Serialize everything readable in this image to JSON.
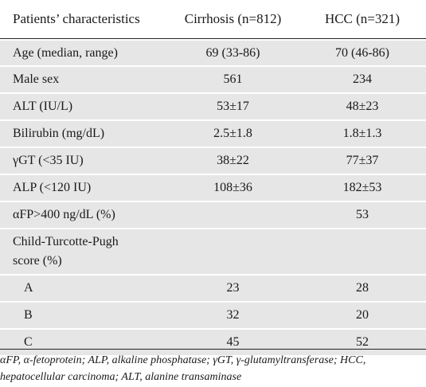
{
  "table": {
    "headers": [
      "Patients’ characteristics",
      "Cirrhosis (n=812)",
      "HCC (n=321)"
    ],
    "rows": [
      {
        "label": "Age (median, range)",
        "cirrhosis": "69 (33-86)",
        "hcc": "70 (46-86)"
      },
      {
        "label": "Male sex",
        "cirrhosis": "561",
        "hcc": "234"
      },
      {
        "label": "ALT (IU/L)",
        "cirrhosis": "53±17",
        "hcc": "48±23"
      },
      {
        "label": "Bilirubin (mg/dL)",
        "cirrhosis": "2.5±1.8",
        "hcc": "1.8±1.3"
      },
      {
        "label": "γGT (<35 IU)",
        "cirrhosis": "38±22",
        "hcc": "77±37"
      },
      {
        "label": "ALP (<120 IU)",
        "cirrhosis": "108±36",
        "hcc": "182±53"
      },
      {
        "label": "αFP>400 ng/dL (%)",
        "cirrhosis": "",
        "hcc": "53"
      },
      {
        "label": "Child-Turcotte-Pugh score (%)",
        "cirrhosis": "",
        "hcc": ""
      },
      {
        "label": "A",
        "cirrhosis": "23",
        "hcc": "28"
      },
      {
        "label": "B",
        "cirrhosis": "32",
        "hcc": "20"
      },
      {
        "label": "C",
        "cirrhosis": "45",
        "hcc": "52"
      }
    ]
  },
  "footnote": "αFP, α-fetoprotein; ALP, alkaline phosphatase; γGT, γ-glutamyltransferase; HCC, hepatocellular carcinoma; ALT, alanine transaminase"
}
